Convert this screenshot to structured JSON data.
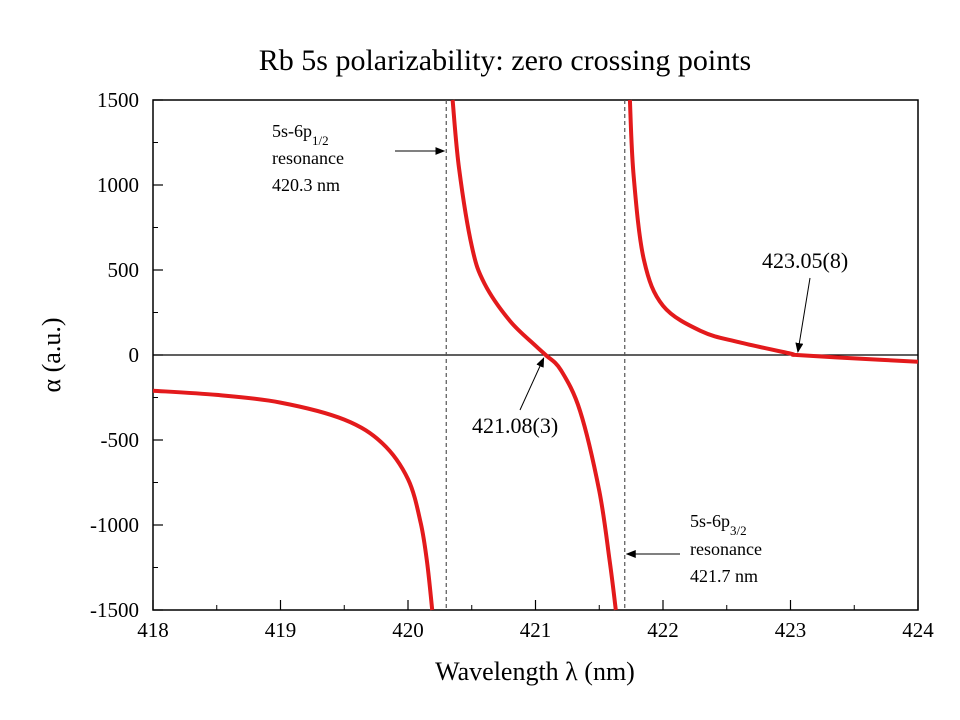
{
  "chart_data": {
    "type": "line",
    "title": "Rb 5s polarizability: zero crossing points",
    "xlabel": "Wavelength λ (nm)",
    "ylabel": "α (a.u.)",
    "xlim": [
      418,
      424
    ],
    "ylim": [
      -1500,
      1500
    ],
    "xticks": [
      418,
      419,
      420,
      421,
      422,
      423,
      424
    ],
    "xtick_labels": [
      "418",
      "419",
      "420",
      "421",
      "422",
      "423",
      "424"
    ],
    "yticks": [
      -1500,
      -1000,
      -500,
      0,
      500,
      1000,
      1500
    ],
    "ytick_labels": [
      "-1500",
      "-1000",
      "-500",
      "0",
      "500",
      "1000",
      "1500"
    ],
    "grid": false,
    "zero_line": true,
    "series_color": "#e31a1c",
    "series": [
      {
        "x": [
          418.0,
          418.5,
          419.0,
          419.5,
          419.8,
          420.0,
          420.1,
          420.15,
          420.19
        ],
        "values": [
          -210,
          -235,
          -280,
          -380,
          -520,
          -730,
          -990,
          -1220,
          -1500
        ]
      },
      {
        "x": [
          420.35,
          420.4,
          420.5,
          420.6,
          420.8,
          421.0,
          421.08,
          421.2,
          421.35,
          421.5,
          421.58,
          421.63
        ],
        "values": [
          1500,
          1100,
          640,
          420,
          200,
          55,
          0,
          -90,
          -330,
          -800,
          -1200,
          -1500
        ]
      },
      {
        "x": [
          421.74,
          421.77,
          421.85,
          422.0,
          422.3,
          422.6,
          423.0,
          423.05,
          423.5,
          424.0
        ],
        "values": [
          1500,
          1050,
          560,
          290,
          140,
          75,
          8,
          0,
          -20,
          -40
        ]
      }
    ],
    "resonances": [
      {
        "x": 420.3,
        "label_lines": [
          "5s-6p",
          "resonance",
          "420.3 nm"
        ],
        "sub": "1/2"
      },
      {
        "x": 421.7,
        "label_lines": [
          "5s-6p",
          "resonance",
          "421.7 nm"
        ],
        "sub": "3/2"
      }
    ],
    "zero_crossings": [
      {
        "x": 421.08,
        "label": "421.08(3)"
      },
      {
        "x": 423.05,
        "label": "423.05(8)"
      }
    ]
  }
}
